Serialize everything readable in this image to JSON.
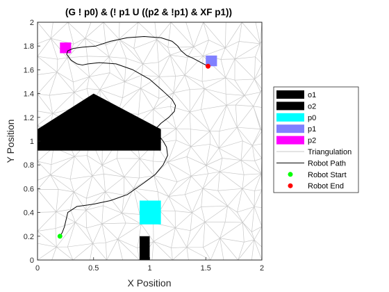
{
  "chart_data": {
    "type": "scatter",
    "title": "(G ! p0) & (! p1 U ((p2 & !p1) & XF p1))",
    "xlabel": "X Position",
    "ylabel": "Y Position",
    "xlim": [
      0,
      2
    ],
    "ylim": [
      0,
      2
    ],
    "xticks": [
      "0",
      "0.5",
      "1",
      "1.5",
      "2"
    ],
    "yticks": [
      "0",
      "0.2",
      "0.4",
      "0.6",
      "0.8",
      "1",
      "1.2",
      "1.4",
      "1.6",
      "1.8",
      "2"
    ],
    "grid": false,
    "legend_position": "right",
    "regions": [
      {
        "name": "o1",
        "color": "#000000",
        "polygon": [
          [
            0,
            0.92
          ],
          [
            1.1,
            0.92
          ],
          [
            1.1,
            1.1
          ],
          [
            0.5,
            1.4
          ],
          [
            0,
            1.1
          ]
        ]
      },
      {
        "name": "o2",
        "color": "#000000",
        "polygon": [
          [
            0.91,
            0
          ],
          [
            1.0,
            0
          ],
          [
            1.0,
            0.2
          ],
          [
            0.91,
            0.2
          ]
        ]
      },
      {
        "name": "p0",
        "color": "#00ffff",
        "polygon": [
          [
            0.91,
            0.3
          ],
          [
            1.1,
            0.3
          ],
          [
            1.1,
            0.5
          ],
          [
            0.91,
            0.5
          ]
        ]
      },
      {
        "name": "p1",
        "color": "#8080ff",
        "polygon": [
          [
            1.5,
            1.63
          ],
          [
            1.6,
            1.63
          ],
          [
            1.6,
            1.72
          ],
          [
            1.5,
            1.72
          ]
        ]
      },
      {
        "name": "p2",
        "color": "#ff00ff",
        "polygon": [
          [
            0.2,
            1.74
          ],
          [
            0.3,
            1.74
          ],
          [
            0.3,
            1.83
          ],
          [
            0.2,
            1.83
          ]
        ]
      }
    ],
    "triangulation": {
      "name": "Triangulation",
      "color": "#c8c8c8",
      "x_nodes": [
        0,
        0.15,
        0.3,
        0.45,
        0.6,
        0.75,
        0.9,
        1.05,
        1.2,
        1.35,
        1.5,
        1.65,
        1.8,
        1.95,
        2
      ],
      "y_nodes": [
        0,
        0.14,
        0.28,
        0.42,
        0.56,
        0.7,
        0.84,
        0.98,
        1.12,
        1.26,
        1.4,
        1.54,
        1.68,
        1.82,
        2
      ]
    },
    "path": {
      "name": "Robot Path",
      "color": "#000000",
      "x": [
        0.2,
        0.22,
        0.24,
        0.27,
        0.35,
        0.5,
        0.65,
        0.8,
        0.95,
        1.05,
        1.12,
        1.16,
        1.15,
        1.12,
        1.08,
        1.05,
        1.1,
        1.17,
        1.22,
        1.23,
        1.2,
        1.12,
        1.0,
        0.85,
        0.7,
        0.55,
        0.45,
        0.4,
        0.35,
        0.3,
        0.26,
        0.27,
        0.32,
        0.4,
        0.52,
        0.65,
        0.8,
        0.95,
        1.1,
        1.2,
        1.25,
        1.28,
        1.33,
        1.38,
        1.42,
        1.46,
        1.5,
        1.52
      ],
      "y": [
        0.2,
        0.23,
        0.28,
        0.4,
        0.45,
        0.47,
        0.5,
        0.55,
        0.65,
        0.72,
        0.8,
        0.88,
        0.95,
        1.0,
        1.05,
        1.1,
        1.15,
        1.2,
        1.25,
        1.3,
        1.35,
        1.42,
        1.52,
        1.6,
        1.65,
        1.66,
        1.65,
        1.64,
        1.65,
        1.68,
        1.73,
        1.76,
        1.78,
        1.79,
        1.8,
        1.84,
        1.87,
        1.88,
        1.87,
        1.84,
        1.8,
        1.76,
        1.72,
        1.7,
        1.68,
        1.66,
        1.64,
        1.63
      ]
    },
    "start": {
      "name": "Robot Start",
      "color": "#00ff00",
      "x": 0.2,
      "y": 0.2
    },
    "end": {
      "name": "Robot End",
      "color": "#ff0000",
      "x": 1.52,
      "y": 1.63
    },
    "legend": [
      {
        "label": "o1",
        "kind": "patch",
        "color": "#000000"
      },
      {
        "label": "o2",
        "kind": "patch",
        "color": "#000000"
      },
      {
        "label": "p0",
        "kind": "patch",
        "color": "#00ffff"
      },
      {
        "label": "p1",
        "kind": "patch",
        "color": "#8080ff"
      },
      {
        "label": "p2",
        "kind": "patch",
        "color": "#ff00ff"
      },
      {
        "label": "Triangulation",
        "kind": "line",
        "color": "#c8c8c8"
      },
      {
        "label": "Robot Path",
        "kind": "line",
        "color": "#000000"
      },
      {
        "label": "Robot Start",
        "kind": "marker",
        "color": "#00ff00"
      },
      {
        "label": "Robot End",
        "kind": "marker",
        "color": "#ff0000"
      }
    ]
  }
}
